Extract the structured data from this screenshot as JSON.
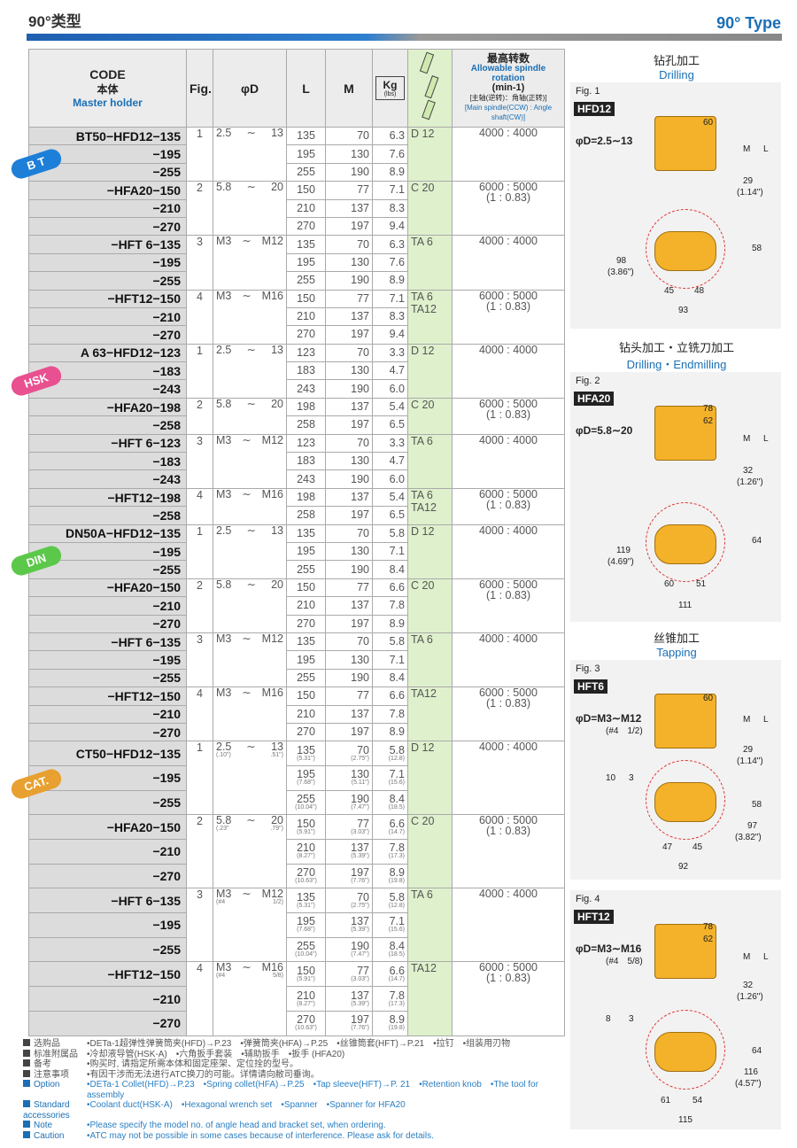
{
  "page": {
    "title_cn": "90°类型",
    "title_en": "90° Type"
  },
  "header": {
    "code": "CODE",
    "code_cn": "本体",
    "code_en": "Master holder",
    "fig": "Fig.",
    "d": "φD",
    "l": "L",
    "m": "M",
    "kg": "Kg",
    "lbs": "(lbs)",
    "rpm_cn": "最高转数",
    "rpm_en": "Allowable spindle rotation",
    "rpm_unit": "(min-1)",
    "rpm_note_cn": "[主轴(逆转)：角轴(正转)]",
    "rpm_note_en": "[Main spindle(CCW) : Angle shaft(CW)]"
  },
  "colors": {
    "accent": "#1a6fb5",
    "collet_bg": "#dff0cc",
    "bt": "#1e7fd8",
    "hsk": "#e8508f",
    "din": "#5cc84a",
    "cat": "#e8a030"
  },
  "series": [
    {
      "badge": "B T",
      "color": "#1e7fd8",
      "groups": [
        {
          "fig": "1",
          "d_min": "2.5",
          "d_max": "13",
          "collet": "D 12",
          "rpm": "4000 : 4000",
          "rows": [
            {
              "code": "BT50−HFD12−135",
              "l": "135",
              "m": "70",
              "kg": "6.3"
            },
            {
              "code": "−195",
              "l": "195",
              "m": "130",
              "kg": "7.6"
            },
            {
              "code": "−255",
              "l": "255",
              "m": "190",
              "kg": "8.9"
            }
          ]
        },
        {
          "fig": "2",
          "d_min": "5.8",
          "d_max": "20",
          "collet": "C 20",
          "rpm": "6000 : 5000",
          "ratio": "(1 : 0.83)",
          "rows": [
            {
              "code": "−HFA20−150",
              "l": "150",
              "m": "77",
              "kg": "7.1"
            },
            {
              "code": "−210",
              "l": "210",
              "m": "137",
              "kg": "8.3"
            },
            {
              "code": "−270",
              "l": "270",
              "m": "197",
              "kg": "9.4"
            }
          ]
        },
        {
          "fig": "3",
          "d_min": "M3",
          "d_max": "M12",
          "collet": "TA 6",
          "rpm": "4000 : 4000",
          "rows": [
            {
              "code": "−HFT 6−135",
              "l": "135",
              "m": "70",
              "kg": "6.3"
            },
            {
              "code": "−195",
              "l": "195",
              "m": "130",
              "kg": "7.6"
            },
            {
              "code": "−255",
              "l": "255",
              "m": "190",
              "kg": "8.9"
            }
          ]
        },
        {
          "fig": "4",
          "d_min": "M3",
          "d_max": "M16",
          "collet": "TA 6 TA12",
          "rpm": "6000 : 5000",
          "ratio": "(1 : 0.83)",
          "rows": [
            {
              "code": "−HFT12−150",
              "l": "150",
              "m": "77",
              "kg": "7.1"
            },
            {
              "code": "−210",
              "l": "210",
              "m": "137",
              "kg": "8.3"
            },
            {
              "code": "−270",
              "l": "270",
              "m": "197",
              "kg": "9.4"
            }
          ]
        }
      ]
    },
    {
      "badge": "HSK",
      "color": "#e8508f",
      "groups": [
        {
          "fig": "1",
          "d_min": "2.5",
          "d_max": "13",
          "collet": "D 12",
          "rpm": "4000 : 4000",
          "rows": [
            {
              "code": "A 63−HFD12−123",
              "l": "123",
              "m": "70",
              "kg": "3.3"
            },
            {
              "code": "−183",
              "l": "183",
              "m": "130",
              "kg": "4.7"
            },
            {
              "code": "−243",
              "l": "243",
              "m": "190",
              "kg": "6.0"
            }
          ]
        },
        {
          "fig": "2",
          "d_min": "5.8",
          "d_max": "20",
          "collet": "C 20",
          "rpm": "6000 : 5000",
          "ratio": "(1 : 0.83)",
          "rows": [
            {
              "code": "−HFA20−198",
              "l": "198",
              "m": "137",
              "kg": "5.4"
            },
            {
              "code": "−258",
              "l": "258",
              "m": "197",
              "kg": "6.5"
            }
          ]
        },
        {
          "fig": "3",
          "d_min": "M3",
          "d_max": "M12",
          "collet": "TA 6",
          "rpm": "4000 : 4000",
          "rows": [
            {
              "code": "−HFT 6−123",
              "l": "123",
              "m": "70",
              "kg": "3.3"
            },
            {
              "code": "−183",
              "l": "183",
              "m": "130",
              "kg": "4.7"
            },
            {
              "code": "−243",
              "l": "243",
              "m": "190",
              "kg": "6.0"
            }
          ]
        },
        {
          "fig": "4",
          "d_min": "M3",
          "d_max": "M16",
          "collet": "TA 6 TA12",
          "rpm": "6000 : 5000",
          "ratio": "(1 : 0.83)",
          "rows": [
            {
              "code": "−HFT12−198",
              "l": "198",
              "m": "137",
              "kg": "5.4"
            },
            {
              "code": "−258",
              "l": "258",
              "m": "197",
              "kg": "6.5"
            }
          ]
        }
      ]
    },
    {
      "badge": "DIN",
      "color": "#5cc84a",
      "groups": [
        {
          "fig": "1",
          "d_min": "2.5",
          "d_max": "13",
          "collet": "D 12",
          "rpm": "4000 : 4000",
          "rows": [
            {
              "code": "DN50A−HFD12−135",
              "l": "135",
              "m": "70",
              "kg": "5.8"
            },
            {
              "code": "−195",
              "l": "195",
              "m": "130",
              "kg": "7.1"
            },
            {
              "code": "−255",
              "l": "255",
              "m": "190",
              "kg": "8.4"
            }
          ]
        },
        {
          "fig": "2",
          "d_min": "5.8",
          "d_max": "20",
          "collet": "C 20",
          "rpm": "6000 : 5000",
          "ratio": "(1 : 0.83)",
          "rows": [
            {
              "code": "−HFA20−150",
              "l": "150",
              "m": "77",
              "kg": "6.6"
            },
            {
              "code": "−210",
              "l": "210",
              "m": "137",
              "kg": "7.8"
            },
            {
              "code": "−270",
              "l": "270",
              "m": "197",
              "kg": "8.9"
            }
          ]
        },
        {
          "fig": "3",
          "d_min": "M3",
          "d_max": "M12",
          "collet": "TA 6",
          "rpm": "4000 : 4000",
          "rows": [
            {
              "code": "−HFT 6−135",
              "l": "135",
              "m": "70",
              "kg": "5.8"
            },
            {
              "code": "−195",
              "l": "195",
              "m": "130",
              "kg": "7.1"
            },
            {
              "code": "−255",
              "l": "255",
              "m": "190",
              "kg": "8.4"
            }
          ]
        },
        {
          "fig": "4",
          "d_min": "M3",
          "d_max": "M16",
          "collet": "TA12",
          "rpm": "6000 : 5000",
          "ratio": "(1 : 0.83)",
          "rows": [
            {
              "code": "−HFT12−150",
              "l": "150",
              "m": "77",
              "kg": "6.6"
            },
            {
              "code": "−210",
              "l": "210",
              "m": "137",
              "kg": "7.8"
            },
            {
              "code": "−270",
              "l": "270",
              "m": "197",
              "kg": "8.9"
            }
          ]
        }
      ]
    },
    {
      "badge": "CAT.",
      "color": "#e8a030",
      "inch": true,
      "groups": [
        {
          "fig": "1",
          "d_min": "2.5",
          "d_max": "13",
          "d_min_in": "(.10\")",
          "d_max_in": ".51\")",
          "collet": "D 12",
          "rpm": "4000 : 4000",
          "rows": [
            {
              "code": "CT50−HFD12−135",
              "l": "135",
              "l_in": "(5.31\")",
              "m": "70",
              "m_in": "(2.75\")",
              "kg": "5.8",
              "lbs": "(12.8)"
            },
            {
              "code": "−195",
              "l": "195",
              "l_in": "(7.68\")",
              "m": "130",
              "m_in": "(5.11\")",
              "kg": "7.1",
              "lbs": "(15.6)"
            },
            {
              "code": "−255",
              "l": "255",
              "l_in": "(10.04\")",
              "m": "190",
              "m_in": "(7.47\")",
              "kg": "8.4",
              "lbs": "(18.5)"
            }
          ]
        },
        {
          "fig": "2",
          "d_min": "5.8",
          "d_max": "20",
          "d_min_in": "(.23\"",
          "d_max_in": ".79\")",
          "collet": "C 20",
          "rpm": "6000 : 5000",
          "ratio": "(1 : 0.83)",
          "rows": [
            {
              "code": "−HFA20−150",
              "l": "150",
              "l_in": "(5.91\")",
              "m": "77",
              "m_in": "(3.03\")",
              "kg": "6.6",
              "lbs": "(14.7)"
            },
            {
              "code": "−210",
              "l": "210",
              "l_in": "(8.27\")",
              "m": "137",
              "m_in": "(5.39\")",
              "kg": "7.8",
              "lbs": "(17.3)"
            },
            {
              "code": "−270",
              "l": "270",
              "l_in": "(10.63\")",
              "m": "197",
              "m_in": "(7.76\")",
              "kg": "8.9",
              "lbs": "(19.8)"
            }
          ]
        },
        {
          "fig": "3",
          "d_min": "M3",
          "d_max": "M12",
          "d_min_in": "(#4",
          "d_max_in": "1/2)",
          "collet": "TA 6",
          "rpm": "4000 : 4000",
          "rows": [
            {
              "code": "−HFT 6−135",
              "l": "135",
              "l_in": "(5.31\")",
              "m": "70",
              "m_in": "(2.75\")",
              "kg": "5.8",
              "lbs": "(12.8)"
            },
            {
              "code": "−195",
              "l": "195",
              "l_in": "(7.68\")",
              "m": "137",
              "m_in": "(5.39\")",
              "kg": "7.1",
              "lbs": "(15.6)"
            },
            {
              "code": "−255",
              "l": "255",
              "l_in": "(10.04\")",
              "m": "190",
              "m_in": "(7.47\")",
              "kg": "8.4",
              "lbs": "(18.5)"
            }
          ]
        },
        {
          "fig": "4",
          "d_min": "M3",
          "d_max": "M16",
          "d_min_in": "(#4",
          "d_max_in": "5/8)",
          "collet": "TA12",
          "rpm": "6000 : 5000",
          "ratio": "(1 : 0.83)",
          "rows": [
            {
              "code": "−HFT12−150",
              "l": "150",
              "l_in": "(5.91\")",
              "m": "77",
              "m_in": "(3.03\")",
              "kg": "6.6",
              "lbs": "(14.7)"
            },
            {
              "code": "−210",
              "l": "210",
              "l_in": "(8.27\")",
              "m": "137",
              "m_in": "(5.39\")",
              "kg": "7.8",
              "lbs": "(17.3)"
            },
            {
              "code": "−270",
              "l": "270",
              "l_in": "(10.63\")",
              "m": "197",
              "m_in": "(7.76\")",
              "kg": "8.9",
              "lbs": "(19.8)"
            }
          ]
        }
      ]
    }
  ],
  "notes": [
    {
      "label": "选购品",
      "text": "•DETa-1超弹性弹簧筒夹(HFD)→P.23　•弹簧筒夹(HFA)→P.25　•丝锥筒套(HFT)→P.21　•拉钉　•组装用刃物"
    },
    {
      "label": "标准附属品",
      "text": "•冷却液导管(HSK-A)　•六角扳手套装　•辅助扳手　•扳手 (HFA20)"
    },
    {
      "label": "备考",
      "text": "•购买时, 请指定所需本体和固定座架、定位拴的型号。"
    },
    {
      "label": "注意事项",
      "text": "•有因干涉而无法进行ATC换刀的可能。详情请向敝司垂询。"
    },
    {
      "label": "Option",
      "text": "•DETa-1 Collet(HFD)→P.23　•Spring collet(HFA)→P.25　•Tap sleeve(HFT)→P. 21　•Retention knob　•The tool for assembly",
      "en": true
    },
    {
      "label": "Standard accessories",
      "text": "•Coolant duct(HSK-A)　•Hexagonal wrench set　•Spanner　•Spanner for HFA20",
      "en": true
    },
    {
      "label": "Note",
      "text": "•Please specify the model no. of angle head and bracket set, when ordering.",
      "en": true
    },
    {
      "label": "Caution",
      "text": "•ATC may not be possible in some cases because of interference. Please ask for details.",
      "en": true
    }
  ],
  "figures": [
    {
      "cap_cn": "钻孔加工",
      "cap_en": "Drilling",
      "fig": "Fig. 1",
      "model": "HFD12",
      "d": "φD=2.5∼13",
      "dims": [
        "60",
        "M",
        "L",
        "29",
        "(1.14\")",
        "58",
        "98",
        "(3.86\")",
        "45",
        "48",
        "93"
      ]
    },
    {
      "cap_cn": "钻头加工・立铣刀加工",
      "cap_en": "Drilling・Endmilling",
      "fig": "Fig. 2",
      "model": "HFA20",
      "d": "φD=5.8∼20",
      "dims": [
        "78",
        "62",
        "M",
        "L",
        "32",
        "(1.26\")",
        "64",
        "119",
        "(4.69\")",
        "60",
        "51",
        "111"
      ]
    },
    {
      "cap_cn": "丝锥加工",
      "cap_en": "Tapping",
      "fig": "Fig. 3",
      "model": "HFT6",
      "d": "φD=M3∼M12",
      "d2": "(#4　1/2)",
      "dims": [
        "60",
        "M",
        "L",
        "29",
        "(1.14\")",
        "10",
        "3",
        "58",
        "97",
        "(3.82\")",
        "47",
        "45",
        "92"
      ]
    },
    {
      "fig": "Fig. 4",
      "model": "HFT12",
      "d": "φD=M3∼M16",
      "d2": "(#4　5/8)",
      "dims": [
        "78",
        "62",
        "M",
        "L",
        "32",
        "(1.26\")",
        "8",
        "3",
        "64",
        "116",
        "(4.57\")",
        "61",
        "54",
        "115"
      ]
    }
  ]
}
